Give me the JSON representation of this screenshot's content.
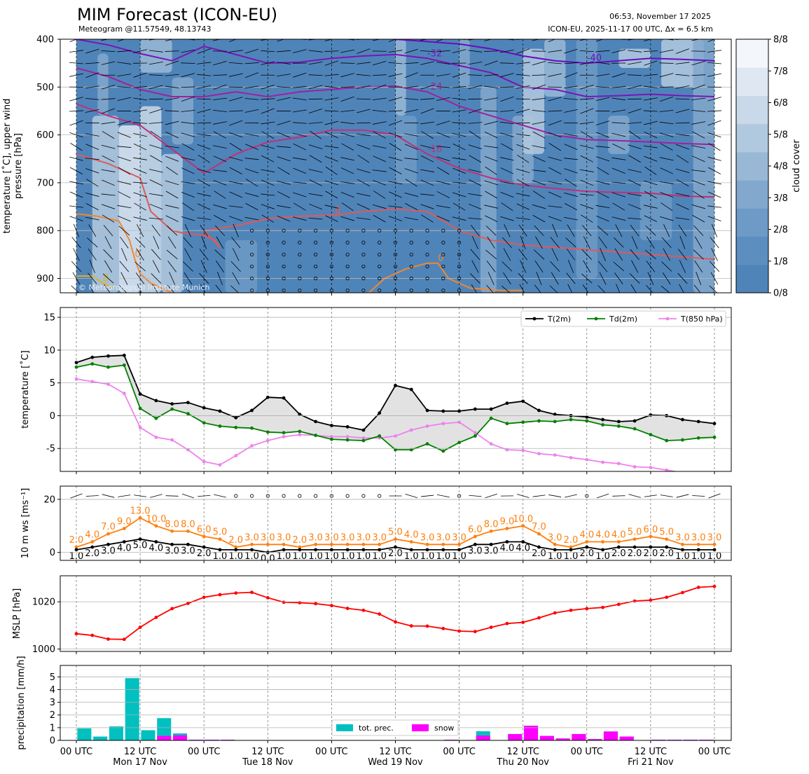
{
  "header": {
    "title": "MIM Forecast (ICON-EU)",
    "subtitle": "Meteogram @11.57549, 48.13743",
    "issue_time": "06:53, November 17 2025",
    "model_info": "ICON-EU, 2025-11-17 00 UTC, Δx = 6.5 km",
    "copyright": "© Meteorological Institute Munich"
  },
  "x_axis": {
    "hours": [
      0,
      12,
      24,
      36,
      48,
      60,
      72,
      84,
      96,
      108,
      120
    ],
    "tick_labels": [
      "00 UTC",
      "12 UTC",
      "00 UTC",
      "12 UTC",
      "00 UTC",
      "12 UTC",
      "00 UTC",
      "12 UTC",
      "00 UTC",
      "12 UTC",
      "00 UTC"
    ],
    "day_labels": [
      {
        "hour": 12,
        "text": "Mon 17 Nov"
      },
      {
        "hour": 36,
        "text": "Tue 18 Nov"
      },
      {
        "hour": 60,
        "text": "Wed 19 Nov"
      },
      {
        "hour": 84,
        "text": "Thu 20 Nov"
      },
      {
        "hour": 108,
        "text": "Fri 21 Nov"
      }
    ]
  },
  "chart_data": [
    {
      "type": "heatmap",
      "ylabel": "temperature [˚C], upper wind\npressure [hPa]",
      "yticks": [
        400,
        500,
        600,
        700,
        800,
        900
      ],
      "ylim": [
        930,
        400
      ],
      "colorbar": {
        "label": "cloud cover",
        "ticks": [
          "0/8",
          "1/8",
          "2/8",
          "3/8",
          "4/8",
          "5/8",
          "6/8",
          "7/8",
          "8/8"
        ],
        "colors": [
          "#4f84b9",
          "#5c8ebf",
          "#6d9ac6",
          "#82a8cd",
          "#99b8d6",
          "#b1c9df",
          "#c9d9e9",
          "#dfe8f2",
          "#f3f7fb"
        ]
      },
      "isotherms": [
        {
          "label": "-40",
          "color": "#6a0dbf",
          "x": [
            60,
            66,
            72,
            78,
            84,
            90,
            96,
            102,
            108,
            114,
            120
          ],
          "p": [
            400,
            405,
            410,
            420,
            435,
            445,
            450,
            445,
            440,
            442,
            445
          ]
        },
        {
          "label": "-32",
          "color": "#7b15b8",
          "x": [
            0,
            6,
            12,
            18,
            24,
            30,
            36,
            42,
            48,
            54,
            60,
            66,
            72,
            78,
            84,
            90,
            96,
            102,
            108,
            114,
            120
          ],
          "p": [
            400,
            412,
            430,
            445,
            415,
            432,
            450,
            448,
            440,
            435,
            432,
            440,
            455,
            470,
            500,
            505,
            520,
            518,
            515,
            518,
            520
          ]
        },
        {
          "label": "-24",
          "color": "#a020a0",
          "x": [
            0,
            6,
            12,
            18,
            24,
            30,
            36,
            42,
            48,
            54,
            60,
            66,
            72,
            78,
            84,
            90,
            96,
            102,
            108,
            114,
            120
          ],
          "p": [
            460,
            478,
            505,
            520,
            520,
            510,
            520,
            510,
            505,
            500,
            498,
            510,
            540,
            560,
            580,
            600,
            610,
            612,
            615,
            618,
            620
          ]
        },
        {
          "label": "-16",
          "color": "#c0307a",
          "x": [
            0,
            6,
            12,
            18,
            24,
            30,
            36,
            42,
            48,
            54,
            60,
            66,
            72,
            78,
            84,
            90,
            96,
            102,
            108,
            114,
            120
          ],
          "p": [
            535,
            560,
            580,
            630,
            680,
            640,
            615,
            605,
            590,
            590,
            600,
            640,
            670,
            690,
            705,
            712,
            718,
            720,
            722,
            728,
            730
          ]
        },
        {
          "label": "-8",
          "color": "#de5a5a",
          "x": [
            0,
            6,
            12,
            14,
            16,
            18,
            20,
            24,
            26,
            27,
            24,
            30,
            36,
            42,
            48,
            54,
            60,
            66,
            72,
            78,
            84,
            90,
            96,
            102,
            108,
            114,
            120
          ],
          "p": [
            640,
            660,
            690,
            760,
            780,
            800,
            805,
            810,
            820,
            835,
            800,
            790,
            775,
            770,
            768,
            760,
            755,
            760,
            800,
            820,
            830,
            835,
            840,
            845,
            850,
            855,
            860
          ]
        },
        {
          "label": "0",
          "color": "#f08830",
          "x": [
            0,
            4,
            8,
            10,
            11,
            12,
            14,
            16,
            18
          ],
          "p": [
            765,
            770,
            780,
            820,
            860,
            890,
            910,
            920,
            930
          ]
        },
        {
          "label": "0",
          "color": "#f08830",
          "x": [
            55,
            58,
            62,
            66,
            68,
            70,
            74,
            80,
            84
          ],
          "p": [
            930,
            900,
            880,
            868,
            868,
            900,
            920,
            925,
            925
          ]
        },
        {
          "label": "8",
          "color": "#e0b020",
          "x": [
            0,
            3,
            5,
            7
          ],
          "p": [
            895,
            895,
            910,
            920
          ]
        }
      ]
    },
    {
      "type": "line",
      "ylabel": "temperature [˚C]",
      "ylim": [
        -8.5,
        16.5
      ],
      "yticks": [
        -5,
        0,
        5,
        10,
        15
      ],
      "legend": "top-right",
      "x": [
        0,
        3,
        6,
        9,
        12,
        15,
        18,
        21,
        24,
        27,
        30,
        33,
        36,
        39,
        42,
        45,
        48,
        51,
        54,
        57,
        60,
        63,
        66,
        69,
        72,
        75,
        78,
        81,
        84,
        87,
        90,
        93,
        96,
        99,
        102,
        105,
        108,
        111,
        114,
        117,
        120
      ],
      "series": [
        {
          "name": "T(2m)",
          "color": "#000000",
          "values": [
            8.1,
            8.9,
            9.1,
            9.2,
            3.3,
            2.3,
            1.8,
            2.0,
            1.2,
            0.7,
            -0.3,
            0.8,
            2.8,
            2.7,
            0.2,
            -0.9,
            -1.5,
            -1.7,
            -2.2,
            0.4,
            4.6,
            4.0,
            0.8,
            0.7,
            0.7,
            1.0,
            1.0,
            1.9,
            2.2,
            0.8,
            0.2,
            0.0,
            -0.2,
            -0.6,
            -0.9,
            -0.8,
            0.1,
            0.0,
            -0.6,
            -0.9,
            -1.2
          ]
        },
        {
          "name": "Td(2m)",
          "color": "#008000",
          "values": [
            7.4,
            7.9,
            7.4,
            7.7,
            1.1,
            -0.4,
            1.0,
            0.3,
            -1.1,
            -1.6,
            -1.8,
            -1.9,
            -2.5,
            -2.6,
            -2.4,
            -3.0,
            -3.6,
            -3.7,
            -3.8,
            -3.1,
            -5.2,
            -5.2,
            -4.3,
            -5.4,
            -4.1,
            -3.1,
            -0.4,
            -1.2,
            -1.0,
            -0.8,
            -0.9,
            -0.6,
            -0.8,
            -1.4,
            -1.6,
            -2.0,
            -2.9,
            -3.8,
            -3.7,
            -3.4,
            -3.3
          ]
        },
        {
          "name": "T(850 hPa)",
          "color": "#ee82ee",
          "values": [
            5.6,
            5.2,
            4.8,
            3.4,
            -1.8,
            -3.3,
            -3.7,
            -5.2,
            -7.0,
            -7.5,
            -6.1,
            -4.6,
            -3.8,
            -3.2,
            -2.9,
            -3.0,
            -3.2,
            -3.2,
            -3.4,
            -3.4,
            -3.1,
            -2.2,
            -1.6,
            -1.2,
            -1.0,
            -2.6,
            -4.3,
            -5.2,
            -5.3,
            -5.8,
            -6.0,
            -6.4,
            -6.7,
            -7.1,
            -7.3,
            -7.8,
            -7.9,
            -8.3,
            -8.7,
            -8.9,
            -9.2
          ]
        }
      ]
    },
    {
      "type": "line",
      "ylabel": "10 m ws [ms⁻¹]",
      "ylim": [
        -3,
        25
      ],
      "yticks": [
        0,
        20
      ],
      "x": [
        0,
        3,
        6,
        9,
        12,
        15,
        18,
        21,
        24,
        27,
        30,
        33,
        36,
        39,
        42,
        45,
        48,
        51,
        54,
        57,
        60,
        63,
        66,
        69,
        72,
        75,
        78,
        81,
        84,
        87,
        90,
        93,
        96,
        99,
        102,
        105,
        108,
        111,
        114,
        117,
        120
      ],
      "series": [
        {
          "name": "gust",
          "color": "#ff7f0e",
          "values": [
            2.0,
            4.0,
            7.0,
            9.0,
            13.0,
            10.0,
            8.0,
            8.0,
            6.0,
            5.0,
            2.0,
            3.0,
            3.0,
            3.0,
            2.0,
            3.0,
            3.0,
            3.0,
            3.0,
            3.0,
            5.0,
            4.0,
            3.0,
            3.0,
            3.0,
            6.0,
            8.0,
            9.0,
            10.0,
            7.0,
            3.0,
            2.0,
            4.0,
            4.0,
            4.0,
            5.0,
            6.0,
            5.0,
            3.0,
            3.0,
            3.0
          ]
        },
        {
          "name": "mean",
          "color": "#000000",
          "values": [
            1.0,
            2.0,
            3.0,
            4.0,
            5.0,
            4.0,
            3.0,
            3.0,
            2.0,
            1.0,
            1.0,
            1.0,
            0.0,
            1.0,
            1.0,
            1.0,
            1.0,
            1.0,
            1.0,
            1.0,
            2.0,
            1.0,
            1.0,
            1.0,
            1.0,
            3.0,
            3.0,
            4.0,
            4.0,
            2.0,
            1.0,
            1.0,
            2.0,
            1.0,
            2.0,
            2.0,
            2.0,
            2.0,
            1.0,
            1.0,
            1.0
          ]
        }
      ]
    },
    {
      "type": "line",
      "ylabel": "MSLP [hPa]",
      "ylim": [
        999,
        1031
      ],
      "yticks": [
        1000,
        1020
      ],
      "x": [
        0,
        3,
        6,
        9,
        12,
        15,
        18,
        21,
        24,
        27,
        30,
        33,
        36,
        39,
        42,
        45,
        48,
        51,
        54,
        57,
        60,
        63,
        66,
        69,
        72,
        75,
        78,
        81,
        84,
        87,
        90,
        93,
        96,
        99,
        102,
        105,
        108,
        111,
        114,
        117,
        120
      ],
      "series": [
        {
          "name": "MSLP",
          "color": "#ff0000",
          "values": [
            1006.5,
            1005.8,
            1004.2,
            1004.1,
            1009.2,
            1013.4,
            1017.1,
            1019.3,
            1021.9,
            1023.0,
            1023.7,
            1024.0,
            1021.7,
            1019.8,
            1019.6,
            1019.2,
            1018.4,
            1017.2,
            1016.4,
            1014.8,
            1011.5,
            1009.8,
            1009.7,
            1008.7,
            1007.6,
            1007.4,
            1009.2,
            1010.8,
            1011.3,
            1013.2,
            1015.3,
            1016.4,
            1017.1,
            1017.6,
            1018.9,
            1020.3,
            1020.7,
            1021.9,
            1023.9,
            1026.1,
            1026.5
          ]
        }
      ]
    },
    {
      "type": "bar",
      "ylabel": "precipitation [mm/h]",
      "ylim": [
        0,
        5.9
      ],
      "yticks": [
        0,
        1,
        2,
        3,
        4,
        5
      ],
      "legend": "bottom-center",
      "x": [
        3,
        6,
        9,
        12,
        15,
        18,
        21,
        24,
        27,
        30,
        33,
        36,
        39,
        42,
        45,
        48,
        51,
        54,
        57,
        60,
        63,
        66,
        69,
        72,
        75,
        78,
        81,
        84,
        87,
        90,
        93,
        96,
        99,
        102,
        105,
        108,
        111,
        114,
        117,
        120
      ],
      "series": [
        {
          "name": "tot. prec.",
          "color": "#00c0c0",
          "values": [
            0.95,
            0.3,
            1.1,
            4.9,
            0.8,
            1.75,
            0.55,
            0.05,
            0.05,
            0.05,
            0,
            0,
            0,
            0,
            0,
            0,
            0,
            0,
            0,
            0,
            0,
            0,
            0,
            0.05,
            0,
            0.72,
            0,
            0.5,
            1.15,
            0.35,
            0.15,
            0.5,
            0.1,
            0.7,
            0.3,
            0,
            0.05,
            0.05,
            0.05,
            0.05
          ]
        },
        {
          "name": "snow",
          "color": "#ff00ff",
          "values": [
            0,
            0,
            0,
            0,
            0,
            0.35,
            0.4,
            0.05,
            0.05,
            0.05,
            0,
            0,
            0,
            0,
            0,
            0,
            0,
            0,
            0,
            0,
            0,
            0,
            0,
            0.05,
            0,
            0.38,
            0,
            0.5,
            1.15,
            0.35,
            0.15,
            0.5,
            0.1,
            0.7,
            0.3,
            0,
            0.05,
            0.05,
            0.05,
            0.05
          ]
        }
      ]
    }
  ]
}
